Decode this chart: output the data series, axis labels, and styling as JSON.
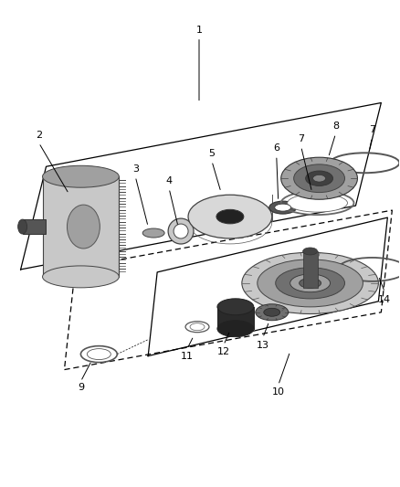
{
  "bg_color": "#ffffff",
  "lc": "#000000",
  "gray1": "#c8c8c8",
  "gray2": "#a0a0a0",
  "gray3": "#707070",
  "gray4": "#404040",
  "gray5": "#d8d8d8",
  "white": "#ffffff",
  "black": "#1a1a1a"
}
